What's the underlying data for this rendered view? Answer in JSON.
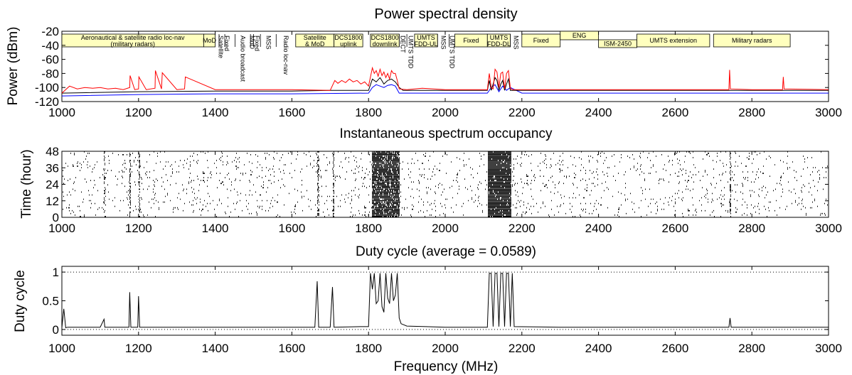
{
  "chart_data": [
    {
      "type": "line",
      "title": "Power spectral density",
      "xlabel": "",
      "ylabel": "Power (dBm)",
      "xlim": [
        1000,
        3000
      ],
      "ylim": [
        -120,
        -20
      ],
      "xticks": [
        "1000",
        "1200",
        "1400",
        "1600",
        "1800",
        "2000",
        "2200",
        "2400",
        "2600",
        "2800",
        "3000"
      ],
      "yticks": [
        "-20",
        "-40",
        "-60",
        "-80",
        "-100",
        "-120"
      ],
      "series": [
        {
          "name": "",
          "color": "#ff0000",
          "role": "maximum",
          "x": [
            1000,
            1020,
            1040,
            1060,
            1080,
            1100,
            1120,
            1140,
            1160,
            1177,
            1178,
            1190,
            1200,
            1201,
            1220,
            1243,
            1244,
            1260,
            1262,
            1300,
            1320,
            1322,
            1400,
            1500,
            1600,
            1700,
            1712,
            1720,
            1730,
            1740,
            1750,
            1760,
            1770,
            1780,
            1790,
            1800,
            1810,
            1815,
            1820,
            1825,
            1830,
            1835,
            1840,
            1845,
            1850,
            1855,
            1860,
            1865,
            1870,
            1875,
            1880,
            1900,
            1940,
            2000,
            2100,
            2110,
            2115,
            2120,
            2125,
            2130,
            2135,
            2140,
            2145,
            2150,
            2155,
            2160,
            2165,
            2170,
            2175,
            2180,
            2200,
            2300,
            2400,
            2500,
            2600,
            2700,
            2740,
            2742,
            2744,
            2800,
            2880,
            2882,
            2884,
            3000
          ],
          "y": [
            -108,
            -98,
            -102,
            -100,
            -101,
            -100,
            -102,
            -101,
            -103,
            -100,
            -83,
            -103,
            -102,
            -85,
            -103,
            -101,
            -76,
            -102,
            -79,
            -103,
            -102,
            -85,
            -103,
            -103,
            -103,
            -104,
            -90,
            -94,
            -90,
            -93,
            -88,
            -92,
            -90,
            -95,
            -92,
            -98,
            -72,
            -80,
            -76,
            -84,
            -74,
            -83,
            -78,
            -86,
            -80,
            -88,
            -76,
            -80,
            -80,
            -90,
            -102,
            -103,
            -101,
            -103,
            -103,
            -103,
            -80,
            -100,
            -102,
            -74,
            -78,
            -100,
            -80,
            -78,
            -102,
            -80,
            -76,
            -101,
            -103,
            -103,
            -103,
            -103,
            -103,
            -103,
            -103,
            -103,
            -103,
            -75,
            -102,
            -103,
            -103,
            -85,
            -102,
            -103
          ]
        },
        {
          "name": "",
          "color": "#000000",
          "role": "mean",
          "x": [
            1000,
            1200,
            1400,
            1600,
            1700,
            1800,
            1810,
            1820,
            1830,
            1840,
            1850,
            1860,
            1870,
            1880,
            1890,
            2000,
            2110,
            2115,
            2120,
            2130,
            2135,
            2140,
            2145,
            2150,
            2155,
            2160,
            2165,
            2170,
            2200,
            2400,
            2600,
            2800,
            3000
          ],
          "y": [
            -108,
            -106,
            -105,
            -105,
            -104,
            -104,
            -88,
            -92,
            -86,
            -95,
            -90,
            -88,
            -92,
            -100,
            -104,
            -104,
            -104,
            -90,
            -104,
            -86,
            -90,
            -104,
            -95,
            -90,
            -104,
            -95,
            -88,
            -104,
            -104,
            -104,
            -104,
            -104,
            -104
          ]
        },
        {
          "name": "",
          "color": "#0000ff",
          "role": "minimum",
          "x": [
            1000,
            1200,
            1400,
            1600,
            1800,
            1810,
            1820,
            1830,
            1840,
            1850,
            1860,
            1870,
            1880,
            2000,
            2110,
            2120,
            2130,
            2140,
            2150,
            2160,
            2170,
            2200,
            2400,
            2600,
            2800,
            3000
          ],
          "y": [
            -112,
            -110,
            -109,
            -109,
            -108,
            -100,
            -96,
            -98,
            -100,
            -97,
            -96,
            -98,
            -108,
            -108,
            -108,
            -100,
            -96,
            -106,
            -98,
            -104,
            -100,
            -108,
            -108,
            -108,
            -108,
            -108
          ]
        }
      ],
      "allocations": [
        {
          "label": [
            "Aeronautical & satellite radio loc-nav",
            "(military radars)"
          ],
          "from": 1000,
          "to": 1370,
          "style": "box",
          "row": 1
        },
        {
          "label": [
            "MoD"
          ],
          "from": 1370,
          "to": 1400,
          "style": "box",
          "row": 1
        },
        {
          "label": [
            "Satellite"
          ],
          "from": 1410,
          "to": 1420,
          "style": "vertical"
        },
        {
          "label": [
            "Fixed"
          ],
          "from": 1425,
          "to": 1435,
          "style": "vertical"
        },
        {
          "label": [
            "Audio broadcast"
          ],
          "from": 1452,
          "to": 1492,
          "style": "vertical"
        },
        {
          "label": [
            "MoD"
          ],
          "from": 1492,
          "to": 1500,
          "style": "vertical"
        },
        {
          "label": [
            "Fixed"
          ],
          "from": 1500,
          "to": 1518,
          "style": "vertical"
        },
        {
          "label": [
            "MSS"
          ],
          "from": 1518,
          "to": 1559,
          "style": "vertical"
        },
        {
          "label": [
            "Radio loc-nav"
          ],
          "from": 1559,
          "to": 1610,
          "style": "vertical"
        },
        {
          "label": [
            "Satellite",
            "& MoD"
          ],
          "from": 1610,
          "to": 1710,
          "style": "box",
          "row": 1
        },
        {
          "label": [
            "DCS1800",
            "uplink"
          ],
          "from": 1710,
          "to": 1785,
          "style": "box",
          "row": 1
        },
        {
          "label": [
            "DCS1800",
            "downlink"
          ],
          "from": 1805,
          "to": 1880,
          "style": "box",
          "row": 1
        },
        {
          "label": [
            "DECT"
          ],
          "from": 1880,
          "to": 1900,
          "style": "vertical"
        },
        {
          "label": [
            "UMTS TDD"
          ],
          "from": 1900,
          "to": 1920,
          "style": "vertical"
        },
        {
          "label": [
            "UMTS",
            "FDD-UL"
          ],
          "from": 1920,
          "to": 1980,
          "style": "box",
          "row": 1
        },
        {
          "label": [
            "MSS"
          ],
          "from": 1980,
          "to": 2010,
          "style": "vertical"
        },
        {
          "label": [
            "UMTS TDD"
          ],
          "from": 2010,
          "to": 2025,
          "style": "vertical"
        },
        {
          "label": [
            "Fixed"
          ],
          "from": 2025,
          "to": 2110,
          "style": "box",
          "row": 1
        },
        {
          "label": [
            "UMTS",
            "FDD-DL"
          ],
          "from": 2110,
          "to": 2170,
          "style": "box",
          "row": 1
        },
        {
          "label": [
            "MSS"
          ],
          "from": 2170,
          "to": 2200,
          "style": "vertical"
        },
        {
          "label": [
            "Fixed"
          ],
          "from": 2200,
          "to": 2300,
          "style": "box",
          "row": 1
        },
        {
          "label": [
            "ENG"
          ],
          "from": 2300,
          "to": 2400,
          "style": "box",
          "row": 0
        },
        {
          "label": [
            "ISM-2450"
          ],
          "from": 2400,
          "to": 2500,
          "style": "box",
          "row": 2
        },
        {
          "label": [
            "UMTS extension"
          ],
          "from": 2500,
          "to": 2690,
          "style": "box",
          "row": 1
        },
        {
          "label": [
            "Military radars"
          ],
          "from": 2700,
          "to": 2900,
          "style": "box",
          "row": 1
        }
      ]
    },
    {
      "type": "scatter",
      "title": "Instantaneous spectrum occupancy",
      "xlabel": "",
      "ylabel": "Time (hour)",
      "xlim": [
        1000,
        3000
      ],
      "ylim": [
        0,
        48
      ],
      "xticks": [
        "1000",
        "1200",
        "1400",
        "1600",
        "1800",
        "2000",
        "2200",
        "2400",
        "2600",
        "2800",
        "3000"
      ],
      "yticks": [
        "0",
        "12",
        "24",
        "36",
        "48"
      ],
      "background_occupancy": 0.03,
      "occupied_bands": [
        {
          "from": 1808,
          "to": 1880,
          "occupancy": 0.85
        },
        {
          "from": 2110,
          "to": 2172,
          "occupancy": 0.95
        }
      ],
      "occupied_lines": [
        1110,
        1177,
        1201,
        1668,
        1708,
        2743
      ]
    },
    {
      "type": "line",
      "title": "Duty cycle (average = 0.0589)",
      "xlabel": "Frequency (MHz)",
      "ylabel": "Duty cycle",
      "xlim": [
        1000,
        3000
      ],
      "ylim": [
        -0.1,
        1.1
      ],
      "xticks": [
        "1000",
        "1200",
        "1400",
        "1600",
        "1800",
        "2000",
        "2200",
        "2400",
        "2600",
        "2800",
        "3000"
      ],
      "yticks": [
        "0",
        "0.5",
        "1"
      ],
      "reference_lines": [
        0,
        1
      ],
      "series": [
        {
          "name": "",
          "color": "#000000",
          "x": [
            1000,
            1005,
            1010,
            1015,
            1050,
            1100,
            1110,
            1112,
            1150,
            1175,
            1177,
            1180,
            1198,
            1200,
            1203,
            1300,
            1400,
            1500,
            1600,
            1660,
            1666,
            1670,
            1700,
            1706,
            1710,
            1780,
            1800,
            1805,
            1810,
            1815,
            1820,
            1825,
            1830,
            1835,
            1840,
            1845,
            1850,
            1855,
            1860,
            1865,
            1870,
            1875,
            1880,
            1885,
            1900,
            1950,
            2000,
            2100,
            2110,
            2115,
            2120,
            2125,
            2130,
            2135,
            2140,
            2145,
            2150,
            2155,
            2160,
            2165,
            2170,
            2175,
            2180,
            2300,
            2500,
            2700,
            2740,
            2743,
            2746,
            2800,
            3000
          ],
          "y": [
            0.03,
            0.36,
            0.03,
            0.04,
            0.04,
            0.04,
            0.18,
            0.04,
            0.04,
            0.04,
            0.65,
            0.04,
            0.04,
            0.58,
            0.04,
            0.04,
            0.04,
            0.04,
            0.04,
            0.04,
            0.84,
            0.04,
            0.04,
            0.74,
            0.04,
            0.05,
            0.05,
            0.98,
            0.7,
            0.98,
            0.45,
            0.5,
            0.98,
            0.4,
            0.3,
            0.98,
            0.55,
            0.45,
            0.98,
            0.5,
            0.6,
            0.98,
            0.2,
            0.1,
            0.06,
            0.05,
            0.04,
            0.04,
            0.04,
            0.98,
            0.98,
            0.05,
            0.98,
            0.98,
            0.05,
            0.98,
            0.98,
            0.05,
            0.98,
            0.98,
            0.05,
            0.98,
            0.05,
            0.04,
            0.04,
            0.04,
            0.04,
            0.2,
            0.04,
            0.04,
            0.04
          ]
        }
      ]
    }
  ]
}
